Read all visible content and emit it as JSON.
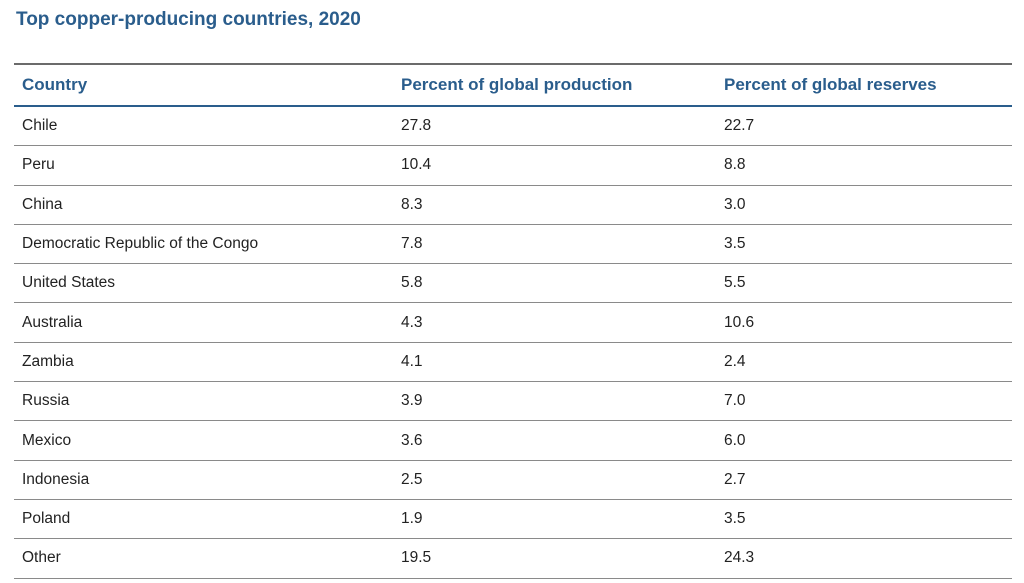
{
  "chart_data": {
    "type": "table",
    "title": "Top copper-producing countries, 2020",
    "columns": [
      "Country",
      "Percent of global production",
      "Percent of global reserves"
    ],
    "rows": [
      [
        "Chile",
        "27.8",
        "22.7"
      ],
      [
        "Peru",
        "10.4",
        "8.8"
      ],
      [
        "China",
        "8.3",
        "3.0"
      ],
      [
        "Democratic Republic of the Congo",
        "7.8",
        "3.5"
      ],
      [
        "United States",
        "5.8",
        "5.5"
      ],
      [
        "Australia",
        "4.3",
        "10.6"
      ],
      [
        "Zambia",
        "4.1",
        "2.4"
      ],
      [
        "Russia",
        "3.9",
        "7.0"
      ],
      [
        "Mexico",
        "3.6",
        "6.0"
      ],
      [
        "Indonesia",
        "2.5",
        "2.7"
      ],
      [
        "Poland",
        "1.9",
        "3.5"
      ],
      [
        "Other",
        "19.5",
        "24.3"
      ]
    ]
  },
  "colors": {
    "header_text": "#2a5d8c",
    "body_text": "#222222",
    "rule": "#8a8a8a"
  }
}
